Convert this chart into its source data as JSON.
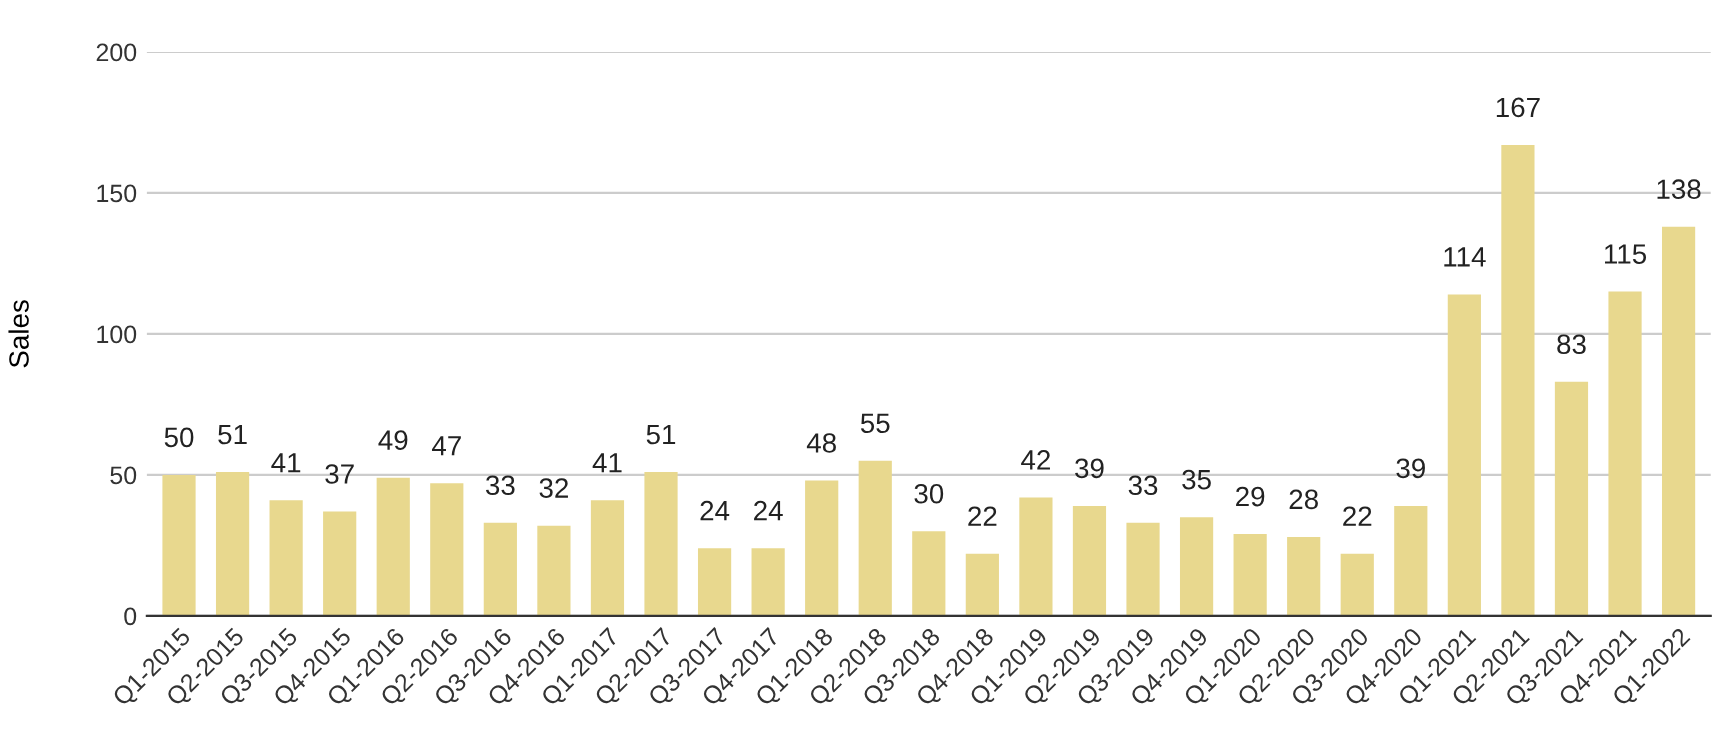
{
  "chart_data": {
    "type": "bar",
    "ylabel": "Sales",
    "categories": [
      "Q1-2015",
      "Q2-2015",
      "Q3-2015",
      "Q4-2015",
      "Q1-2016",
      "Q2-2016",
      "Q3-2016",
      "Q4-2016",
      "Q1-2017",
      "Q2-2017",
      "Q3-2017",
      "Q4-2017",
      "Q1-2018",
      "Q2-2018",
      "Q3-2018",
      "Q4-2018",
      "Q1-2019",
      "Q2-2019",
      "Q3-2019",
      "Q4-2019",
      "Q1-2020",
      "Q2-2020",
      "Q3-2020",
      "Q4-2020",
      "Q1-2021",
      "Q2-2021",
      "Q3-2021",
      "Q4-2021",
      "Q1-2022"
    ],
    "values": [
      50,
      51,
      41,
      37,
      49,
      47,
      33,
      32,
      41,
      51,
      24,
      24,
      48,
      55,
      30,
      22,
      42,
      39,
      33,
      35,
      29,
      28,
      22,
      39,
      114,
      167,
      83,
      115,
      138
    ],
    "color": "#e8d88e",
    "ylim": [
      0,
      200
    ],
    "yticks": [
      0,
      50,
      100,
      150,
      200
    ],
    "grid": "y",
    "legend": false,
    "data_labels": true
  }
}
